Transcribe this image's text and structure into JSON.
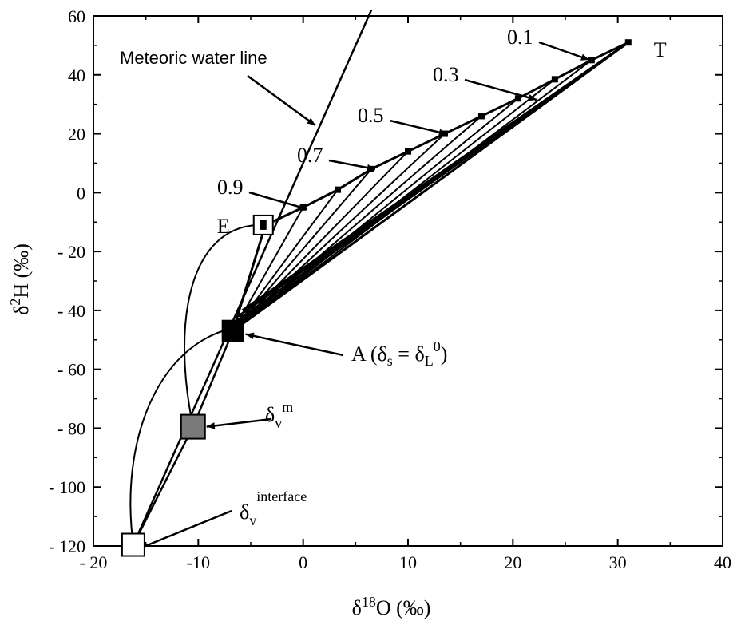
{
  "chart_data": {
    "type": "line",
    "xlabel": {
      "prefix": "δ",
      "sup": "18",
      "rest": "O (‰)"
    },
    "ylabel": {
      "prefix": "δ",
      "sup": "2",
      "rest": "H (‰)"
    },
    "xlim": [
      -20,
      40
    ],
    "ylim": [
      -120,
      60
    ],
    "x_ticks": [
      -20,
      -10,
      0,
      10,
      20,
      30,
      40
    ],
    "x_tick_labels": [
      "- 20",
      "-10",
      "0",
      "10",
      "20",
      "30",
      "40"
    ],
    "y_ticks": [
      -120,
      -100,
      -80,
      -60,
      -40,
      -20,
      0,
      20,
      40,
      60
    ],
    "y_tick_labels": [
      "- 120",
      "- 100",
      "- 80",
      "- 60",
      "- 40",
      "- 20",
      "0",
      "20",
      "40",
      "60"
    ],
    "meteoric_water_line": {
      "label": "Meteoric water line",
      "points": [
        [
          -16.2,
          -119.6
        ],
        [
          6.5,
          62
        ]
      ]
    },
    "trajectory": {
      "points": [
        [
          -6.7,
          -47
        ],
        [
          -3.6,
          -11
        ],
        [
          0,
          -5
        ],
        [
          3.3,
          1
        ],
        [
          6.5,
          8
        ],
        [
          10,
          14
        ],
        [
          13.5,
          20
        ],
        [
          17,
          26
        ],
        [
          20.5,
          32
        ],
        [
          24,
          38.5
        ],
        [
          27.5,
          45
        ],
        [
          31,
          51
        ]
      ],
      "fractions_shown": [
        {
          "label": "0.1",
          "x": 27.5,
          "y": 45
        },
        {
          "label": "0.3",
          "x": 20.5,
          "y": 32
        },
        {
          "label": "0.5",
          "x": 13.5,
          "y": 20
        },
        {
          "label": "0.7",
          "x": 6.5,
          "y": 8
        },
        {
          "label": "0.9",
          "x": 0,
          "y": -5
        }
      ]
    },
    "tie_lines_from_A_to": [
      [
        0,
        -5
      ],
      [
        3.3,
        1
      ],
      [
        6.5,
        8
      ],
      [
        10,
        14
      ],
      [
        13.5,
        20
      ],
      [
        17,
        26
      ],
      [
        20.5,
        32
      ],
      [
        24,
        38.5
      ],
      [
        27.5,
        45
      ],
      [
        31,
        51
      ],
      [
        -3.6,
        -11
      ]
    ],
    "tie_lines_to_T_from": [
      [
        -6.7,
        -47
      ],
      [
        -6.5,
        -44
      ],
      [
        -6.2,
        -42
      ],
      [
        -5.8,
        -40
      ]
    ],
    "key_points": {
      "T": {
        "label": "T",
        "x": 31,
        "y": 51
      },
      "E": {
        "label": "E",
        "x": -3.8,
        "y": -11
      },
      "A": {
        "label": "A",
        "sub": "s",
        "mid": " = δ",
        "sub2": "L",
        "sup": "0",
        "x": -6.7,
        "y": -47
      },
      "vm": {
        "label": "δ",
        "sub": "v",
        "sup": "m",
        "x": -10.5,
        "y": -79.5
      },
      "vi": {
        "label": "δ",
        "sub": "v",
        "sup": "interface",
        "x": -16.2,
        "y": -119.6
      }
    },
    "curves": {
      "curve_vi_A": [
        [
          -16.2,
          -119.6
        ],
        [
          -17.5,
          -85
        ],
        [
          -14,
          -52
        ],
        [
          -6.7,
          -46
        ]
      ],
      "curve_vm_E": [
        [
          -10.5,
          -79.5
        ],
        [
          -12.5,
          -45
        ],
        [
          -11,
          -12
        ],
        [
          -4.3,
          -11
        ]
      ]
    },
    "straight_A_vi": [
      [
        -6.7,
        -47
      ],
      [
        -10.5,
        -79.5
      ],
      [
        -16.2,
        -119.6
      ]
    ]
  }
}
